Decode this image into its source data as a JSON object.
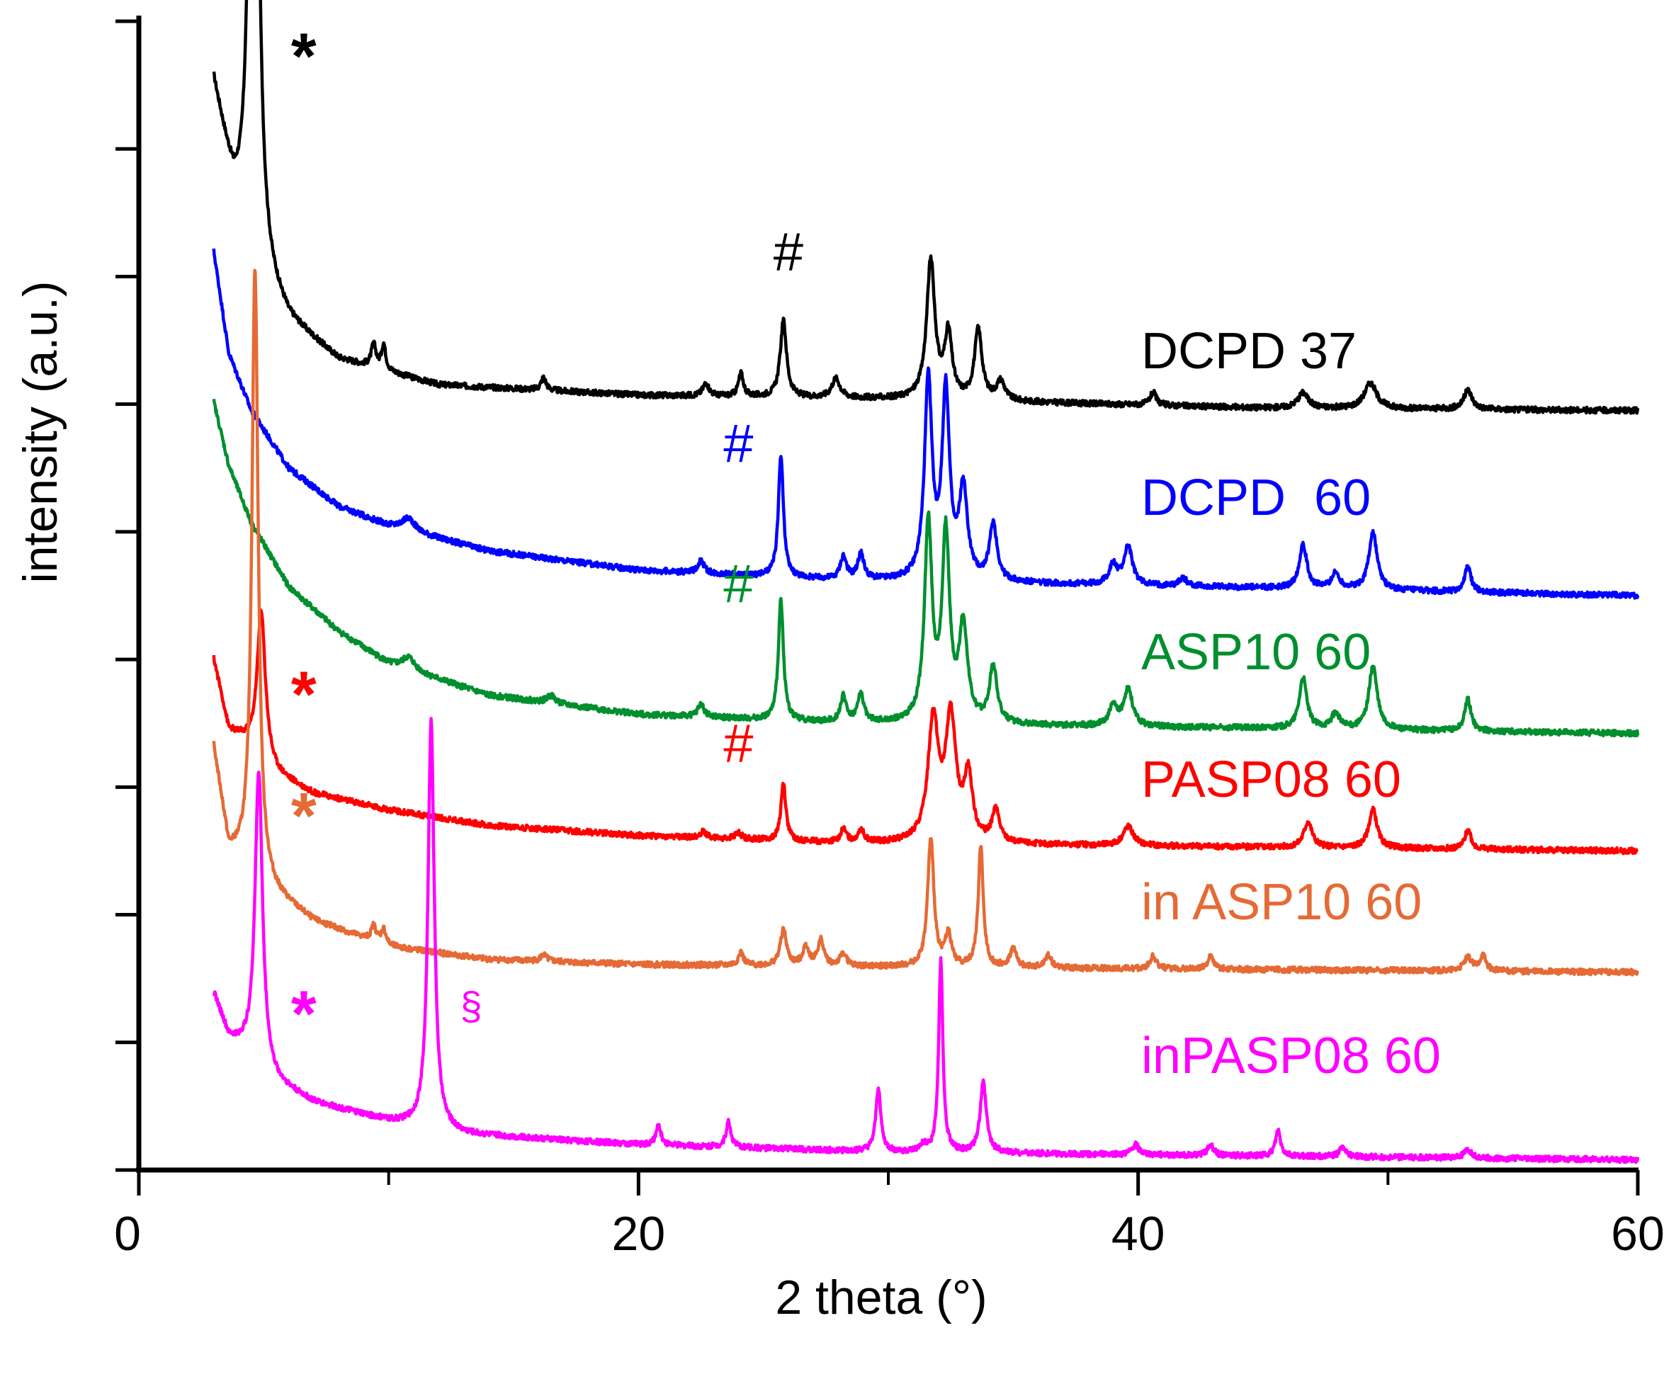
{
  "chart_data": {
    "type": "line",
    "title": "",
    "xlabel": "2 theta (°)",
    "ylabel": "intensity (a.u.)",
    "xlim": [
      0,
      60
    ],
    "ylim": [
      0,
      9.1
    ],
    "x_ticks": [
      0,
      20,
      40,
      60
    ],
    "x_tick_labels": [
      "0",
      "20",
      "40",
      "60"
    ],
    "y_ticks": [
      0,
      1,
      2,
      3,
      4,
      5,
      6,
      7,
      8,
      9
    ],
    "grid": false,
    "legend": "inline labels at right",
    "x_start": 3,
    "series": [
      {
        "name": "DCPD 37",
        "color": "#000000",
        "baseline": 5.9,
        "background": [
          [
            3,
            2.6
          ],
          [
            3.8,
            1.7
          ],
          [
            4.5,
            1.2
          ],
          [
            6,
            0.75
          ],
          [
            8,
            0.45
          ],
          [
            12,
            0.25
          ],
          [
            20,
            0.17
          ],
          [
            30,
            0.14
          ],
          [
            45,
            0.07
          ],
          [
            60,
            0.05
          ]
        ],
        "peaks": [
          [
            4.6,
            7.0,
            0.18
          ],
          [
            9.4,
            0.18,
            0.12
          ],
          [
            9.8,
            0.2,
            0.1
          ],
          [
            16.2,
            0.1,
            0.12
          ],
          [
            22.7,
            0.1,
            0.15
          ],
          [
            24.1,
            0.18,
            0.12
          ],
          [
            25.8,
            0.6,
            0.15
          ],
          [
            27.9,
            0.15,
            0.2
          ],
          [
            31.7,
            1.08,
            0.2
          ],
          [
            32.4,
            0.5,
            0.18
          ],
          [
            33.6,
            0.55,
            0.18
          ],
          [
            34.5,
            0.15,
            0.2
          ],
          [
            40.6,
            0.1,
            0.15
          ],
          [
            46.6,
            0.12,
            0.25
          ],
          [
            49.3,
            0.2,
            0.3
          ],
          [
            53.2,
            0.15,
            0.2
          ]
        ]
      },
      {
        "name": "DCPD  60",
        "color": "#0000ff",
        "baseline": 4.5,
        "background": [
          [
            3,
            2.7
          ],
          [
            3.6,
            1.9
          ],
          [
            4.5,
            1.45
          ],
          [
            6,
            1.0
          ],
          [
            8,
            0.7
          ],
          [
            10,
            0.55
          ],
          [
            14,
            0.35
          ],
          [
            20,
            0.2
          ],
          [
            28,
            0.12
          ],
          [
            45,
            0.06
          ],
          [
            60,
            0.0
          ]
        ],
        "peaks": [
          [
            10.8,
            0.1,
            0.3
          ],
          [
            22.5,
            0.1,
            0.15
          ],
          [
            25.7,
            0.95,
            0.12
          ],
          [
            28.2,
            0.18,
            0.15
          ],
          [
            28.9,
            0.2,
            0.15
          ],
          [
            31.6,
            1.55,
            0.18
          ],
          [
            32.3,
            1.45,
            0.18
          ],
          [
            33.0,
            0.7,
            0.2
          ],
          [
            34.2,
            0.45,
            0.18
          ],
          [
            39.0,
            0.15,
            0.2
          ],
          [
            39.6,
            0.3,
            0.2
          ],
          [
            41.8,
            0.06,
            0.2
          ],
          [
            46.6,
            0.35,
            0.18
          ],
          [
            47.9,
            0.12,
            0.2
          ],
          [
            49.4,
            0.45,
            0.2
          ],
          [
            53.2,
            0.2,
            0.15
          ]
        ]
      },
      {
        "name": "ASP10 60",
        "color": "#008f2e",
        "baseline": 3.42,
        "background": [
          [
            3,
            2.6
          ],
          [
            3.6,
            2.1
          ],
          [
            4.5,
            1.65
          ],
          [
            6,
            1.15
          ],
          [
            8,
            0.8
          ],
          [
            10,
            0.55
          ],
          [
            14,
            0.3
          ],
          [
            20,
            0.15
          ],
          [
            28,
            0.08
          ],
          [
            45,
            0.04
          ],
          [
            60,
            0.0
          ]
        ],
        "peaks": [
          [
            10.8,
            0.1,
            0.3
          ],
          [
            16.5,
            0.06,
            0.2
          ],
          [
            22.5,
            0.1,
            0.15
          ],
          [
            25.7,
            0.95,
            0.12
          ],
          [
            28.2,
            0.2,
            0.15
          ],
          [
            28.9,
            0.22,
            0.15
          ],
          [
            31.6,
            1.55,
            0.18
          ],
          [
            32.3,
            1.45,
            0.18
          ],
          [
            33.0,
            0.75,
            0.2
          ],
          [
            34.2,
            0.45,
            0.18
          ],
          [
            39.0,
            0.15,
            0.2
          ],
          [
            39.6,
            0.3,
            0.2
          ],
          [
            46.6,
            0.4,
            0.18
          ],
          [
            47.9,
            0.12,
            0.2
          ],
          [
            49.4,
            0.5,
            0.2
          ],
          [
            53.2,
            0.25,
            0.15
          ]
        ]
      },
      {
        "name": "PASP08 60",
        "color": "#ff0000",
        "baseline": 2.5,
        "background": [
          [
            3,
            1.5
          ],
          [
            3.6,
            0.95
          ],
          [
            4.3,
            0.85
          ],
          [
            5.5,
            0.6
          ],
          [
            7,
            0.45
          ],
          [
            10,
            0.32
          ],
          [
            14,
            0.2
          ],
          [
            20,
            0.12
          ],
          [
            28,
            0.06
          ],
          [
            45,
            0.03
          ],
          [
            60,
            0.0
          ]
        ],
        "peaks": [
          [
            4.9,
            1.15,
            0.2
          ],
          [
            22.6,
            0.05,
            0.15
          ],
          [
            24.0,
            0.05,
            0.15
          ],
          [
            25.8,
            0.45,
            0.12
          ],
          [
            28.2,
            0.1,
            0.15
          ],
          [
            28.9,
            0.1,
            0.15
          ],
          [
            31.8,
            0.95,
            0.25
          ],
          [
            32.5,
            0.95,
            0.25
          ],
          [
            33.2,
            0.5,
            0.2
          ],
          [
            34.3,
            0.25,
            0.18
          ],
          [
            39.6,
            0.15,
            0.25
          ],
          [
            46.8,
            0.2,
            0.2
          ],
          [
            49.4,
            0.3,
            0.2
          ],
          [
            53.2,
            0.15,
            0.15
          ]
        ]
      },
      {
        "name": "in ASP10 60",
        "color": "#e56a35",
        "baseline": 1.55,
        "background": [
          [
            3,
            1.75
          ],
          [
            3.6,
            0.95
          ],
          [
            4.3,
            0.85
          ],
          [
            5.5,
            0.6
          ],
          [
            7,
            0.4
          ],
          [
            10,
            0.2
          ],
          [
            14,
            0.1
          ],
          [
            20,
            0.06
          ],
          [
            30,
            0.04
          ],
          [
            60,
            0.0
          ]
        ],
        "peaks": [
          [
            4.65,
            4.75,
            0.15
          ],
          [
            9.4,
            0.12,
            0.12
          ],
          [
            9.8,
            0.12,
            0.12
          ],
          [
            16.2,
            0.05,
            0.15
          ],
          [
            24.1,
            0.1,
            0.12
          ],
          [
            25.8,
            0.28,
            0.15
          ],
          [
            26.7,
            0.15,
            0.15
          ],
          [
            27.3,
            0.2,
            0.15
          ],
          [
            28.2,
            0.1,
            0.15
          ],
          [
            31.7,
            1.0,
            0.15
          ],
          [
            32.4,
            0.25,
            0.15
          ],
          [
            33.7,
            0.95,
            0.12
          ],
          [
            35.0,
            0.15,
            0.15
          ],
          [
            36.4,
            0.1,
            0.15
          ],
          [
            40.6,
            0.1,
            0.15
          ],
          [
            42.9,
            0.1,
            0.15
          ],
          [
            53.2,
            0.1,
            0.2
          ],
          [
            53.8,
            0.12,
            0.15
          ]
        ]
      },
      {
        "name": "inPASP08 60",
        "color": "#ff00ff",
        "baseline": 0.08,
        "background": [
          [
            3,
            1.3
          ],
          [
            3.6,
            0.95
          ],
          [
            4.3,
            0.85
          ],
          [
            5.5,
            0.6
          ],
          [
            7,
            0.45
          ],
          [
            10,
            0.3
          ],
          [
            13,
            0.2
          ],
          [
            20,
            0.12
          ],
          [
            30,
            0.06
          ],
          [
            60,
            0.0
          ]
        ],
        "peaks": [
          [
            4.8,
            2.3,
            0.18
          ],
          [
            11.7,
            3.2,
            0.15
          ],
          [
            20.8,
            0.15,
            0.12
          ],
          [
            23.6,
            0.2,
            0.12
          ],
          [
            29.6,
            0.5,
            0.12
          ],
          [
            31.4,
            0.05,
            0.15
          ],
          [
            32.1,
            1.5,
            0.1
          ],
          [
            33.8,
            0.55,
            0.15
          ],
          [
            39.9,
            0.08,
            0.15
          ],
          [
            42.9,
            0.08,
            0.15
          ],
          [
            45.6,
            0.2,
            0.12
          ],
          [
            48.2,
            0.08,
            0.15
          ],
          [
            53.2,
            0.06,
            0.2
          ]
        ]
      }
    ],
    "annotations": [
      {
        "text": "*",
        "color": "#000000",
        "x": 6.6,
        "y": 8.55
      },
      {
        "text": "#",
        "color": "#000000",
        "x": 26.0,
        "y": 7.05
      },
      {
        "text": "#",
        "color": "#0000ff",
        "x": 24.0,
        "y": 5.55
      },
      {
        "text": "#",
        "color": "#008f2e",
        "x": 24.0,
        "y": 4.45
      },
      {
        "text": "*",
        "color": "#ff0000",
        "x": 6.6,
        "y": 3.55
      },
      {
        "text": "#",
        "color": "#ff0000",
        "x": 24.0,
        "y": 3.2
      },
      {
        "text": "*",
        "color": "#e56a35",
        "x": 6.6,
        "y": 2.6
      },
      {
        "text": "*",
        "color": "#ff00ff",
        "x": 6.6,
        "y": 1.05
      },
      {
        "text": "§",
        "color": "#ff00ff",
        "x": 13.3,
        "y": 1.18
      }
    ]
  }
}
